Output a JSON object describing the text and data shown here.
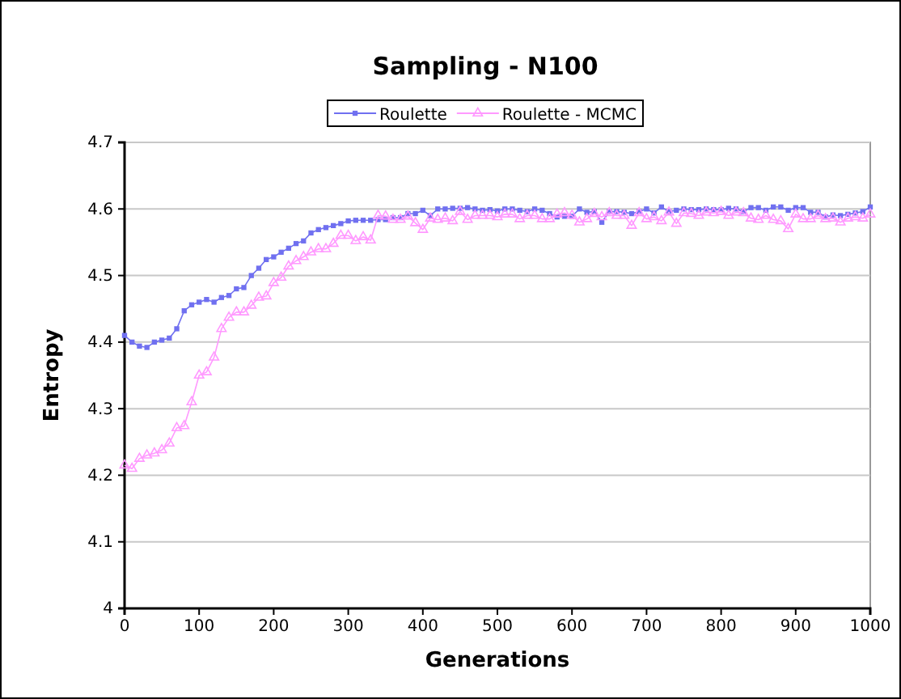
{
  "chart_data": {
    "type": "line",
    "title": "Sampling - N100",
    "xlabel": "Generations",
    "ylabel": "Entropy",
    "x": [
      0,
      10,
      20,
      30,
      40,
      50,
      60,
      70,
      80,
      90,
      100,
      110,
      120,
      130,
      140,
      150,
      160,
      170,
      180,
      190,
      200,
      210,
      220,
      230,
      240,
      250,
      260,
      270,
      280,
      290,
      300,
      310,
      320,
      330,
      340,
      350,
      360,
      370,
      380,
      390,
      400,
      410,
      420,
      430,
      440,
      450,
      460,
      470,
      480,
      490,
      500,
      510,
      520,
      530,
      540,
      550,
      560,
      570,
      580,
      590,
      600,
      610,
      620,
      630,
      640,
      650,
      660,
      670,
      680,
      690,
      700,
      710,
      720,
      730,
      740,
      750,
      760,
      770,
      780,
      790,
      800,
      810,
      820,
      830,
      840,
      850,
      860,
      870,
      880,
      890,
      900,
      910,
      920,
      930,
      940,
      950,
      960,
      970,
      980,
      990,
      1000
    ],
    "series": [
      {
        "name": "Roulette",
        "color": "#7070f0",
        "marker": "square",
        "values": [
          4.41,
          4.4,
          4.394,
          4.392,
          4.4,
          4.403,
          4.406,
          4.42,
          4.447,
          4.456,
          4.46,
          4.464,
          4.46,
          4.467,
          4.47,
          4.48,
          4.482,
          4.5,
          4.511,
          4.524,
          4.528,
          4.535,
          4.541,
          4.548,
          4.552,
          4.564,
          4.569,
          4.572,
          4.575,
          4.578,
          4.582,
          4.583,
          4.583,
          4.583,
          4.584,
          4.584,
          4.587,
          4.587,
          4.593,
          4.593,
          4.598,
          4.59,
          4.6,
          4.6,
          4.601,
          4.601,
          4.602,
          4.6,
          4.598,
          4.599,
          4.597,
          4.6,
          4.6,
          4.598,
          4.596,
          4.6,
          4.598,
          4.593,
          4.588,
          4.589,
          4.589,
          4.6,
          4.595,
          4.596,
          4.58,
          4.596,
          4.596,
          4.595,
          4.593,
          4.596,
          4.6,
          4.594,
          4.603,
          4.596,
          4.598,
          4.6,
          4.599,
          4.599,
          4.6,
          4.599,
          4.599,
          4.601,
          4.6,
          4.596,
          4.602,
          4.602,
          4.598,
          4.603,
          4.603,
          4.598,
          4.602,
          4.602,
          4.595,
          4.595,
          4.588,
          4.591,
          4.59,
          4.592,
          4.594,
          4.596,
          4.603
        ]
      },
      {
        "name": "Roulette - MCMC",
        "color": "#ff99ff",
        "marker": "triangle",
        "values": [
          4.215,
          4.21,
          4.225,
          4.23,
          4.233,
          4.238,
          4.248,
          4.271,
          4.274,
          4.31,
          4.35,
          4.355,
          4.377,
          4.42,
          4.437,
          4.445,
          4.445,
          4.455,
          4.467,
          4.469,
          4.489,
          4.497,
          4.514,
          4.522,
          4.528,
          4.535,
          4.54,
          4.54,
          4.548,
          4.56,
          4.56,
          4.552,
          4.558,
          4.553,
          4.59,
          4.589,
          4.584,
          4.584,
          4.589,
          4.579,
          4.569,
          4.586,
          4.584,
          4.586,
          4.582,
          4.596,
          4.584,
          4.59,
          4.59,
          4.59,
          4.588,
          4.592,
          4.592,
          4.585,
          4.59,
          4.59,
          4.585,
          4.585,
          4.592,
          4.594,
          4.59,
          4.58,
          4.585,
          4.593,
          4.588,
          4.594,
          4.59,
          4.59,
          4.575,
          4.594,
          4.585,
          4.588,
          4.582,
          4.595,
          4.578,
          4.594,
          4.593,
          4.59,
          4.595,
          4.594,
          4.596,
          4.59,
          4.595,
          4.594,
          4.586,
          4.584,
          4.59,
          4.584,
          4.582,
          4.57,
          4.592,
          4.585,
          4.585,
          4.59,
          4.585,
          4.586,
          4.58,
          4.586,
          4.588,
          4.586,
          4.592
        ]
      }
    ],
    "xlim": [
      0,
      1000
    ],
    "xticks": [
      0,
      100,
      200,
      300,
      400,
      500,
      600,
      700,
      800,
      900,
      1000
    ],
    "ylim": [
      4,
      4.7
    ],
    "yticks": [
      4,
      4.1,
      4.2,
      4.3,
      4.4,
      4.5,
      4.6,
      4.7
    ],
    "grid": "y",
    "legend": "top",
    "line_style": "solid"
  }
}
